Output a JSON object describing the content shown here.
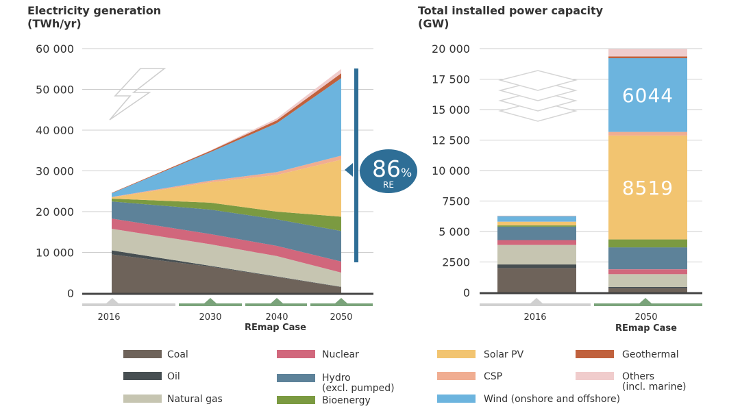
{
  "chart_data": [
    {
      "type": "area",
      "title": "Electricity generation",
      "subtitle": "(TWh/yr)",
      "x": [
        "2016",
        "2030",
        "2040",
        "2050"
      ],
      "ylim": [
        0,
        60000
      ],
      "yticks": [
        "0",
        "10 000",
        "20 000",
        "30 000",
        "40 000",
        "50 000",
        "60 000"
      ],
      "scenario_label": "REmap Case",
      "series": [
        {
          "name": "Coal",
          "color": "#6e635a",
          "values": [
            9500,
            6500,
            4000,
            1500
          ]
        },
        {
          "name": "Oil",
          "color": "#474f52",
          "values": [
            1000,
            200,
            100,
            50
          ]
        },
        {
          "name": "Natural gas",
          "color": "#c6c5b1",
          "values": [
            5300,
            5300,
            5000,
            3500
          ]
        },
        {
          "name": "Nuclear",
          "color": "#d1677c",
          "values": [
            2500,
            2500,
            2500,
            2700
          ]
        },
        {
          "name": "Hydro (excl. pumped)",
          "color": "#5d8299",
          "values": [
            4200,
            6000,
            6500,
            7500
          ]
        },
        {
          "name": "Bioenergy",
          "color": "#7b9a41",
          "values": [
            700,
            1700,
            1900,
            3500
          ]
        },
        {
          "name": "Solar PV",
          "color": "#f2c470",
          "values": [
            300,
            5000,
            9000,
            14000
          ]
        },
        {
          "name": "CSP",
          "color": "#f0ad91",
          "values": [
            100,
            400,
            700,
            1000
          ]
        },
        {
          "name": "Wind (onshore and offshore)",
          "color": "#6cb4de",
          "values": [
            900,
            7000,
            12000,
            19000
          ]
        },
        {
          "name": "Geothermal",
          "color": "#c0613d",
          "values": [
            100,
            300,
            700,
            1200
          ]
        },
        {
          "name": "Others (incl. marine)",
          "color": "#f0cccc",
          "values": [
            0,
            100,
            500,
            1050
          ]
        }
      ],
      "badge": {
        "value": "86",
        "unit": "%",
        "label": "RE"
      }
    },
    {
      "type": "bar",
      "title": "Total installed power capacity",
      "subtitle": "(GW)",
      "categories": [
        "2016",
        "2050"
      ],
      "ylim": [
        0,
        20000
      ],
      "yticks": [
        "0",
        "2500",
        "5 000",
        "7500",
        "10 000",
        "12 500",
        "15 000",
        "17 500",
        "20 000"
      ],
      "scenario_label": "REmap Case",
      "series": [
        {
          "name": "Coal",
          "color": "#6e635a",
          "values": [
            2000,
            350
          ]
        },
        {
          "name": "Oil",
          "color": "#474f52",
          "values": [
            300,
            100
          ]
        },
        {
          "name": "Natural gas",
          "color": "#c6c5b1",
          "values": [
            1600,
            1050
          ]
        },
        {
          "name": "Nuclear",
          "color": "#d1677c",
          "values": [
            400,
            400
          ]
        },
        {
          "name": "Hydro (excl. pumped)",
          "color": "#5d8299",
          "values": [
            1100,
            1800
          ]
        },
        {
          "name": "Bioenergy",
          "color": "#7b9a41",
          "values": [
            100,
            650
          ]
        },
        {
          "name": "Solar PV",
          "color": "#f2c470",
          "values": [
            300,
            8519
          ]
        },
        {
          "name": "CSP",
          "color": "#f0ad91",
          "values": [
            10,
            300
          ]
        },
        {
          "name": "Wind (onshore and offshore)",
          "color": "#6cb4de",
          "values": [
            450,
            6044
          ]
        },
        {
          "name": "Geothermal",
          "color": "#c0613d",
          "values": [
            15,
            150
          ]
        },
        {
          "name": "Others (incl. marine)",
          "color": "#f0cccc",
          "values": [
            25,
            600
          ]
        }
      ],
      "data_labels": [
        {
          "series": "Wind (onshore and offshore)",
          "category": "2050",
          "text": "6044"
        },
        {
          "series": "Solar PV",
          "category": "2050",
          "text": "8519"
        }
      ]
    }
  ],
  "legend": [
    {
      "label": "Coal",
      "color": "#6e635a"
    },
    {
      "label": "Oil",
      "color": "#474f52"
    },
    {
      "label": "Natural gas",
      "color": "#c6c5b1"
    },
    {
      "label": "Nuclear",
      "color": "#d1677c"
    },
    {
      "label": "Hydro",
      "label2": "(excl. pumped)",
      "color": "#5d8299"
    },
    {
      "label": "Bioenergy",
      "color": "#7b9a41"
    },
    {
      "label": "Solar PV",
      "color": "#f2c470"
    },
    {
      "label": "CSP",
      "color": "#f0ad91"
    },
    {
      "label": "Wind (onshore and offshore)",
      "color": "#6cb4de"
    },
    {
      "label": "Geothermal",
      "color": "#c0613d"
    },
    {
      "label": "Others",
      "label2": "(incl. marine)",
      "color": "#f0cccc"
    }
  ],
  "icons": {
    "left": "lightning-bolt-icon",
    "right": "stacked-layers-icon"
  },
  "colors": {
    "axis": "#444444",
    "grid": "#cccccc",
    "badge": "#2e6e96",
    "remap_bar": "#7aa37a",
    "baseline_bar": "#d0d0d0"
  }
}
